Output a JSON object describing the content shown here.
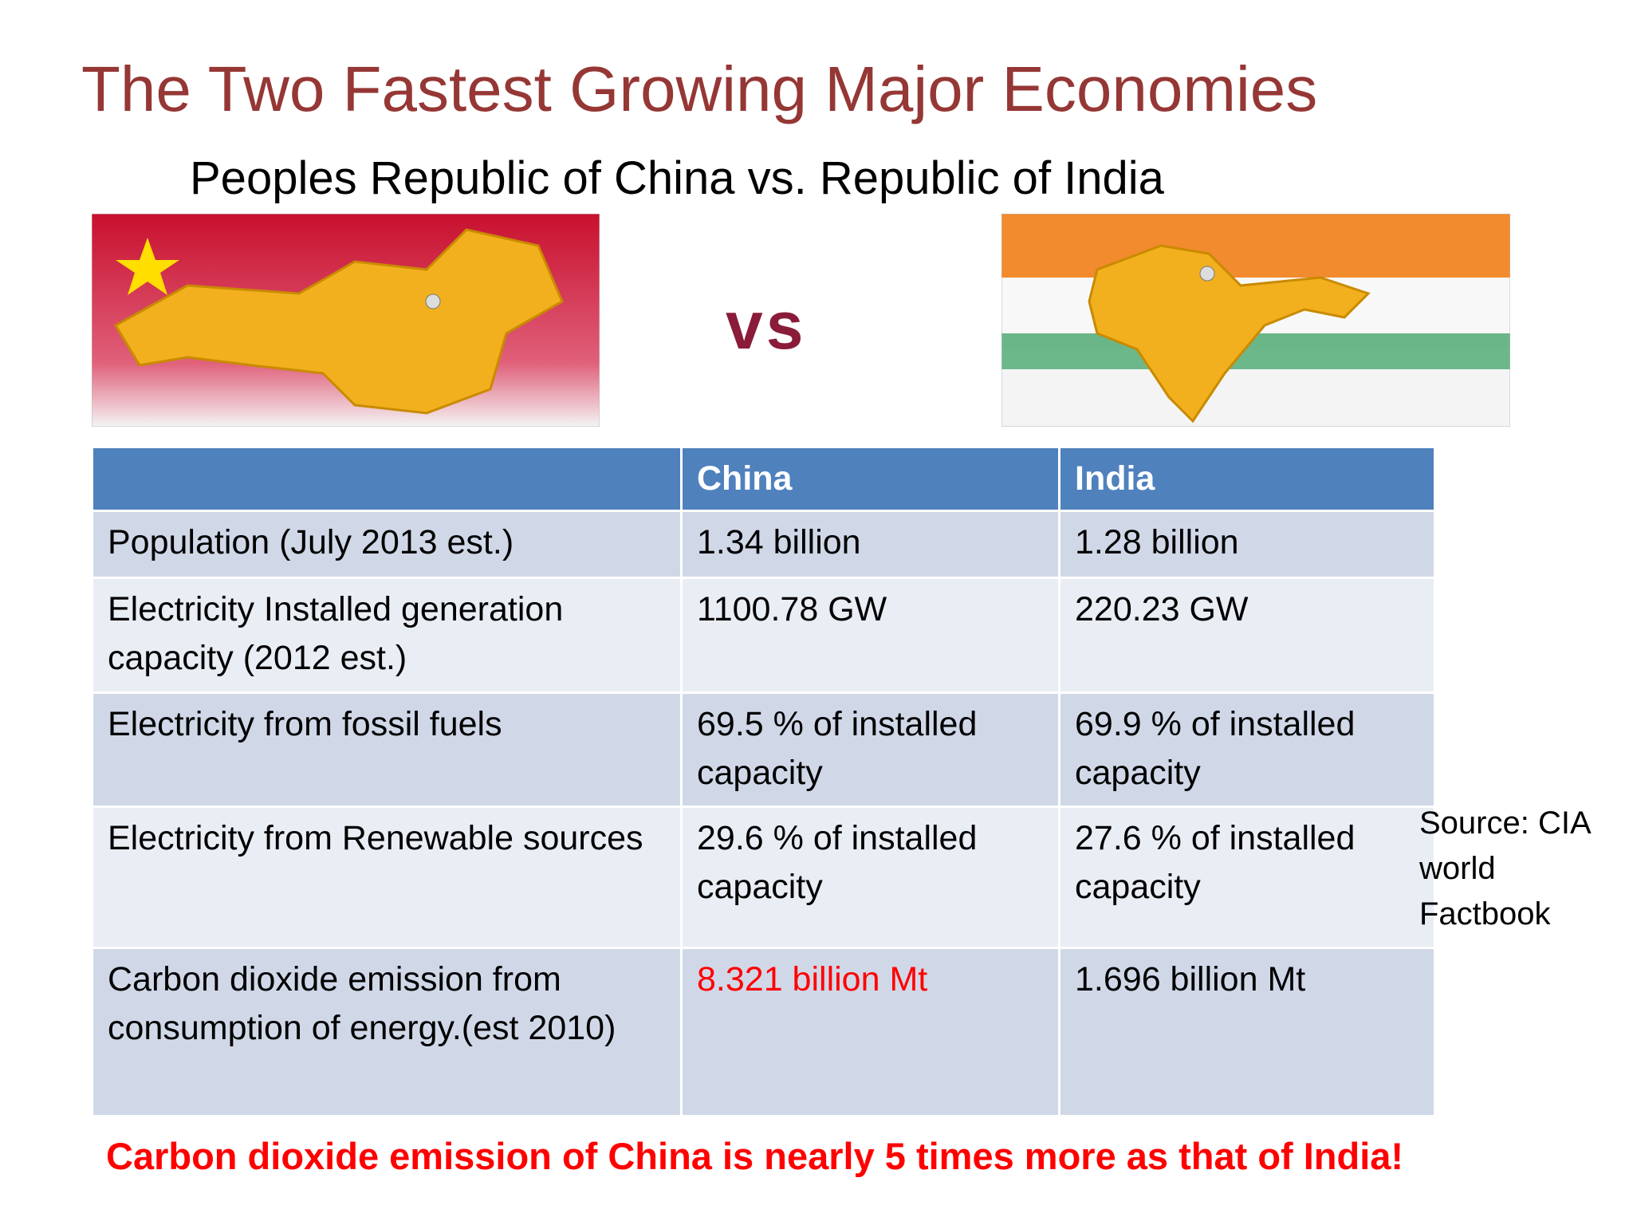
{
  "header": {
    "title": "The Two Fastest Growing Major Economies",
    "subtitle": "Peoples Republic of China vs. Republic of India"
  },
  "images": {
    "comparison_label": "vs"
  },
  "table": {
    "columns": [
      "China",
      "India"
    ],
    "rows": [
      [
        "Population (July 2013 est.)",
        "1.34 billion",
        "1.28 billion"
      ],
      [
        "Electricity Installed generation capacity (2012 est.)",
        "1100.78 GW",
        "220.23 GW"
      ],
      [
        "Electricity from fossil fuels",
        "69.5 % of installed capacity",
        "69.9 % of installed capacity"
      ],
      [
        "Electricity from Renewable sources",
        "29.6 % of installed capacity",
        "27.6 % of installed capacity"
      ],
      [
        "Carbon dioxide emission from consumption of energy.(est 2010)",
        "8.321 billion Mt",
        "1.696 billion Mt"
      ]
    ]
  },
  "source": "Source: CIA world Factbook",
  "footnote": "Carbon dioxide emission of China is nearly 5 times more as that of India!"
}
